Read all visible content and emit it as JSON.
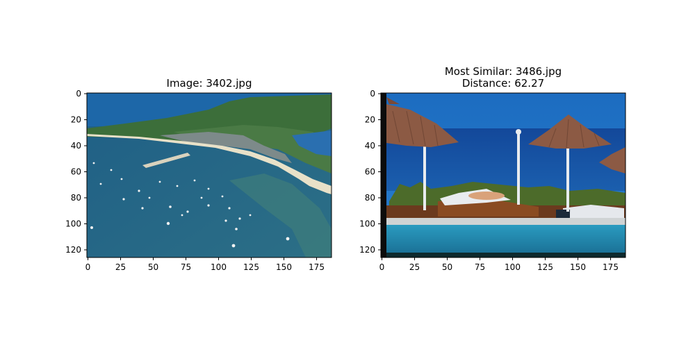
{
  "figure": {
    "panels": [
      {
        "title_lines": [
          "Image: 3402.jpg"
        ],
        "image_description": "aerial view of a harbor with boats, beach and town",
        "x_ticks": [
          "0",
          "25",
          "50",
          "75",
          "100",
          "125",
          "150",
          "175"
        ],
        "y_ticks": [
          "0",
          "20",
          "40",
          "60",
          "80",
          "100",
          "120"
        ]
      },
      {
        "title_lines": [
          "Most Similar: 3486.jpg",
          "Distance: 62.27"
        ],
        "image_description": "pool-side sun loungers with thatched umbrellas and the sea",
        "x_ticks": [
          "0",
          "25",
          "50",
          "75",
          "100",
          "125",
          "150",
          "175"
        ],
        "y_ticks": [
          "0",
          "20",
          "40",
          "60",
          "80",
          "100",
          "120"
        ]
      }
    ]
  }
}
